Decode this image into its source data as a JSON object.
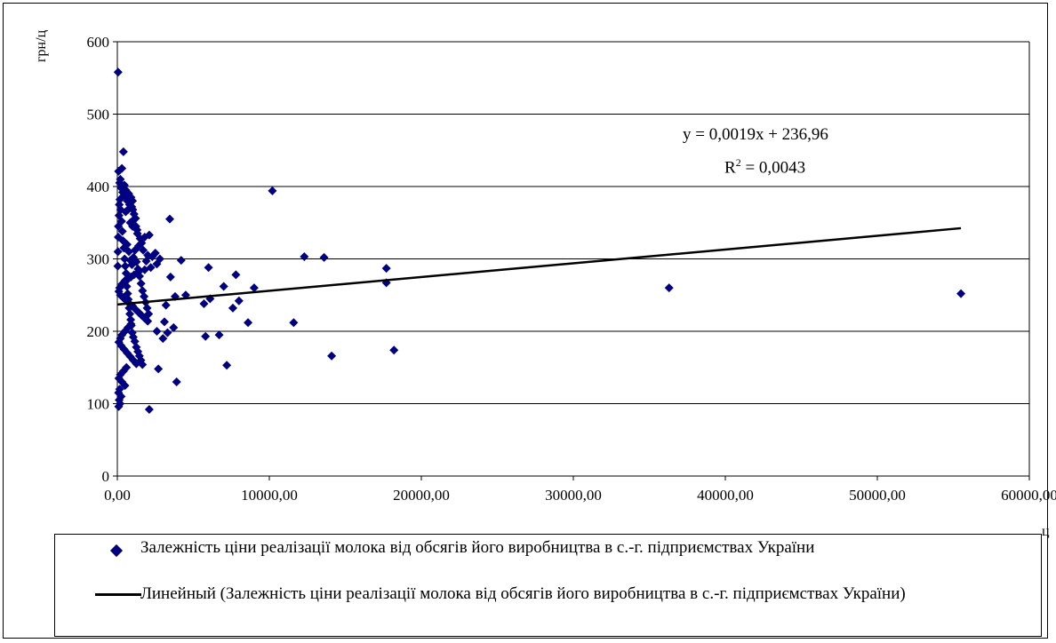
{
  "chart_data": {
    "type": "scatter",
    "ylabel": "грн/ц",
    "xlabel": "ц",
    "xlim": [
      0,
      60000
    ],
    "ylim": [
      0,
      600
    ],
    "xticks": [
      "0,00",
      "10000,00",
      "20000,00",
      "30000,00",
      "40000,00",
      "50000,00",
      "60000,00"
    ],
    "yticks": [
      "0",
      "100",
      "200",
      "300",
      "400",
      "500",
      "600"
    ],
    "grid": "horizontal",
    "legend_position": "bottom",
    "colors": {
      "points": "#000080",
      "trendline": "#000000"
    },
    "trendline": {
      "slope": 0.0019,
      "intercept": 236.96,
      "x_range": [
        0,
        55500
      ],
      "equation": "y = 0,0019x + 236,96",
      "r2_prefix": "R",
      "r2_sup": "2",
      "r2_value": " = 0,0043"
    },
    "series": [
      {
        "name": "Залежність ціни реалізації молока від обсягів його виробництва в с.-г. підприємствах України",
        "points": [
          [
            50,
            558
          ],
          [
            400,
            448
          ],
          [
            300,
            425
          ],
          [
            80,
            421
          ],
          [
            200,
            410
          ],
          [
            150,
            405
          ],
          [
            250,
            398
          ],
          [
            350,
            392
          ],
          [
            450,
            388
          ],
          [
            600,
            386
          ],
          [
            750,
            390
          ],
          [
            900,
            385
          ],
          [
            1000,
            380
          ],
          [
            800,
            375
          ],
          [
            950,
            372
          ],
          [
            700,
            368
          ],
          [
            550,
            365
          ],
          [
            1100,
            362
          ],
          [
            1200,
            356
          ],
          [
            1300,
            340
          ],
          [
            1000,
            345
          ],
          [
            850,
            350
          ],
          [
            3450,
            355
          ],
          [
            2100,
            333
          ],
          [
            1800,
            330
          ],
          [
            1600,
            322
          ],
          [
            1500,
            328
          ],
          [
            1400,
            318
          ],
          [
            2500,
            308
          ],
          [
            2300,
            303
          ],
          [
            2800,
            300
          ],
          [
            1700,
            312
          ],
          [
            1900,
            297
          ],
          [
            2000,
            305
          ],
          [
            2600,
            293
          ],
          [
            2200,
            288
          ],
          [
            1800,
            285
          ],
          [
            1400,
            282
          ],
          [
            1100,
            278
          ],
          [
            900,
            275
          ],
          [
            700,
            272
          ],
          [
            500,
            270
          ],
          [
            300,
            265
          ],
          [
            150,
            260
          ],
          [
            100,
            255
          ],
          [
            200,
            250
          ],
          [
            400,
            246
          ],
          [
            600,
            242
          ],
          [
            800,
            238
          ],
          [
            1000,
            235
          ],
          [
            1200,
            230
          ],
          [
            1400,
            226
          ],
          [
            1600,
            222
          ],
          [
            1800,
            218
          ],
          [
            2000,
            214
          ],
          [
            900,
            210
          ],
          [
            700,
            205
          ],
          [
            500,
            200
          ],
          [
            300,
            195
          ],
          [
            200,
            190
          ],
          [
            100,
            185
          ],
          [
            250,
            180
          ],
          [
            450,
            175
          ],
          [
            650,
            170
          ],
          [
            850,
            165
          ],
          [
            1050,
            160
          ],
          [
            1250,
            155
          ],
          [
            600,
            150
          ],
          [
            400,
            145
          ],
          [
            200,
            140
          ],
          [
            100,
            135
          ],
          [
            300,
            130
          ],
          [
            500,
            125
          ],
          [
            150,
            120
          ],
          [
            80,
            115
          ],
          [
            250,
            110
          ],
          [
            120,
            105
          ],
          [
            180,
            100
          ],
          [
            90,
            96
          ],
          [
            60,
            330
          ],
          [
            40,
            310
          ],
          [
            30,
            290
          ],
          [
            70,
            345
          ],
          [
            110,
            360
          ],
          [
            130,
            375
          ],
          [
            170,
            382
          ],
          [
            220,
            368
          ],
          [
            280,
            352
          ],
          [
            330,
            338
          ],
          [
            380,
            325
          ],
          [
            430,
            315
          ],
          [
            480,
            300
          ],
          [
            520,
            290
          ],
          [
            580,
            280
          ],
          [
            620,
            262
          ],
          [
            680,
            252
          ],
          [
            720,
            244
          ],
          [
            780,
            232
          ],
          [
            820,
            224
          ],
          [
            880,
            216
          ],
          [
            920,
            208
          ],
          [
            980,
            198
          ],
          [
            1050,
            192
          ],
          [
            1150,
            186
          ],
          [
            1250,
            178
          ],
          [
            1350,
            172
          ],
          [
            1450,
            166
          ],
          [
            1550,
            160
          ],
          [
            1650,
            154
          ],
          [
            640,
            320
          ],
          [
            760,
            310
          ],
          [
            860,
            298
          ],
          [
            960,
            292
          ],
          [
            1060,
            302
          ],
          [
            1160,
            312
          ],
          [
            1260,
            296
          ],
          [
            1360,
            286
          ],
          [
            1460,
            276
          ],
          [
            1560,
            266
          ],
          [
            1660,
            256
          ],
          [
            1760,
            248
          ],
          [
            1860,
            240
          ],
          [
            1960,
            232
          ],
          [
            2060,
            224
          ],
          [
            340,
            398
          ],
          [
            460,
            402
          ],
          [
            560,
            395
          ],
          [
            660,
            380
          ],
          [
            1020,
            368
          ],
          [
            1120,
            355
          ],
          [
            1220,
            345
          ],
          [
            1320,
            335
          ],
          [
            2100,
            92
          ],
          [
            2600,
            200
          ],
          [
            2700,
            148
          ],
          [
            3000,
            190
          ],
          [
            3100,
            213
          ],
          [
            3200,
            236
          ],
          [
            3300,
            198
          ],
          [
            3500,
            275
          ],
          [
            3700,
            205
          ],
          [
            3800,
            248
          ],
          [
            3900,
            130
          ],
          [
            4200,
            298
          ],
          [
            4500,
            250
          ],
          [
            5700,
            238
          ],
          [
            5800,
            193
          ],
          [
            6000,
            288
          ],
          [
            6100,
            245
          ],
          [
            6700,
            195
          ],
          [
            7000,
            262
          ],
          [
            7200,
            153
          ],
          [
            7600,
            232
          ],
          [
            7800,
            278
          ],
          [
            8000,
            242
          ],
          [
            8600,
            212
          ],
          [
            9000,
            260
          ],
          [
            10200,
            394
          ],
          [
            11600,
            212
          ],
          [
            12300,
            303
          ],
          [
            13600,
            302
          ],
          [
            14100,
            166
          ],
          [
            17700,
            287
          ],
          [
            17700,
            267
          ],
          [
            18200,
            174
          ],
          [
            36300,
            260
          ],
          [
            55500,
            252
          ]
        ]
      }
    ]
  },
  "legend": {
    "items": [
      {
        "text": "Залежність ціни реалізації молока від обсягів його виробництва в с.-г. підприємствах України",
        "marker": "diamond-icon"
      },
      {
        "text": "Линейный (Залежність ціни реалізації молока від обсягів його виробництва в с.-г. підприємствах України)",
        "marker": "line"
      }
    ]
  }
}
